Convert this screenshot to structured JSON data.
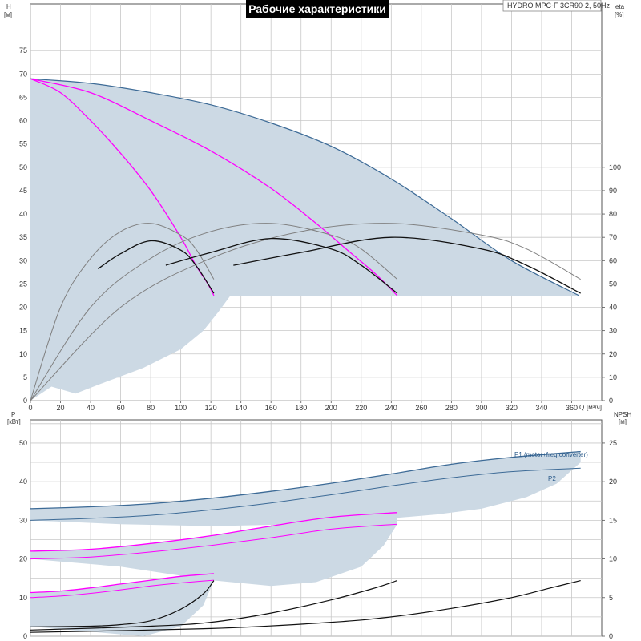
{
  "title": "Рабочие характеристики",
  "model": "HYDRO MPC-F 3CR90-2, 50Hz",
  "colors": {
    "area": "#ccd9e4",
    "max_curve": "#3c6a96",
    "reduced_curve": "#ff00ff",
    "eta_curve": "#808080",
    "npsh_curve": "#111111",
    "grid": "#c8c8c8",
    "title_bg": "#000000"
  },
  "chart_data": [
    {
      "id": "top",
      "type": "line",
      "xlabel": "Q",
      "xunit": "[м³/ч]",
      "ylabel": "H",
      "yunit": "[м]",
      "y2label": "eta",
      "y2unit": "[%]",
      "xlim": [
        0,
        380
      ],
      "ylim": [
        0,
        85
      ],
      "y2lim": [
        0,
        170
      ],
      "xticks": [
        "0",
        "20",
        "40",
        "60",
        "80",
        "100",
        "120",
        "140",
        "160",
        "180",
        "200",
        "220",
        "240",
        "260",
        "280",
        "300",
        "320",
        "340",
        "360"
      ],
      "yticks": [
        "0",
        "5",
        "10",
        "15",
        "20",
        "25",
        "30",
        "35",
        "40",
        "45",
        "50",
        "55",
        "60",
        "65",
        "70",
        "75"
      ],
      "y2ticks": [
        "0",
        "10",
        "20",
        "30",
        "40",
        "50",
        "60",
        "70",
        "80",
        "90",
        "100"
      ],
      "area": {
        "upper": [
          [
            0,
            69
          ],
          [
            40,
            68
          ],
          [
            80,
            66
          ],
          [
            120,
            63.4
          ],
          [
            160,
            59.5
          ],
          [
            200,
            54.5
          ],
          [
            240,
            47.5
          ],
          [
            280,
            39
          ],
          [
            320,
            30
          ],
          [
            365,
            22.5
          ]
        ],
        "floor": 22.5,
        "lower": [
          [
            0,
            0
          ],
          [
            14,
            3
          ],
          [
            30,
            1.5
          ],
          [
            50,
            4
          ],
          [
            75,
            7
          ],
          [
            100,
            11
          ],
          [
            115,
            15
          ],
          [
            125,
            19
          ],
          [
            133,
            22.5
          ]
        ]
      },
      "series": [
        {
          "role": "head_max",
          "points": [
            [
              0,
              69
            ],
            [
              40,
              68
            ],
            [
              80,
              66
            ],
            [
              120,
              63.4
            ],
            [
              160,
              59.5
            ],
            [
              200,
              54.5
            ],
            [
              240,
              47.5
            ],
            [
              280,
              39
            ],
            [
              320,
              30
            ],
            [
              365,
              22.5
            ]
          ]
        },
        {
          "role": "head_two_pumps",
          "points": [
            [
              0,
              69
            ],
            [
              40,
              66
            ],
            [
              80,
              60
            ],
            [
              120,
              53.5
            ],
            [
              160,
              45.5
            ],
            [
              190,
              38
            ],
            [
              210,
              32.5
            ],
            [
              230,
              27
            ],
            [
              244,
              22.5
            ]
          ]
        },
        {
          "role": "head_one_pump",
          "points": [
            [
              0,
              69
            ],
            [
              20,
              66
            ],
            [
              40,
              60
            ],
            [
              60,
              53
            ],
            [
              80,
              45
            ],
            [
              100,
              35
            ],
            [
              110,
              29
            ],
            [
              118,
              25
            ],
            [
              122,
              22.5
            ]
          ]
        },
        {
          "role": "eta_one_pump",
          "points": [
            [
              0,
              0
            ],
            [
              20,
              40
            ],
            [
              40,
              61
            ],
            [
              60,
              72.5
            ],
            [
              80,
              76
            ],
            [
              100,
              71
            ],
            [
              110,
              65
            ],
            [
              122,
              52
            ]
          ]
        },
        {
          "role": "eta_two_pumps",
          "points": [
            [
              0,
              0
            ],
            [
              40,
              40
            ],
            [
              80,
              61
            ],
            [
              120,
              72.5
            ],
            [
              160,
              76
            ],
            [
              200,
              71
            ],
            [
              220,
              65
            ],
            [
              244,
              52
            ]
          ]
        },
        {
          "role": "eta_three_pumps",
          "points": [
            [
              0,
              0
            ],
            [
              60,
              40
            ],
            [
              120,
              61
            ],
            [
              180,
              72.5
            ],
            [
              240,
              76
            ],
            [
              300,
              71
            ],
            [
              330,
              65
            ],
            [
              366,
              52
            ]
          ]
        },
        {
          "role": "eta_one_pump_lower",
          "points": [
            [
              45,
              56.5
            ],
            [
              60,
              63
            ],
            [
              80,
              68.5
            ],
            [
              100,
              64.5
            ],
            [
              110,
              58
            ],
            [
              122,
              46
            ]
          ]
        },
        {
          "role": "eta_two_pumps_lower",
          "points": [
            [
              90,
              58
            ],
            [
              120,
              63.5
            ],
            [
              160,
              69.5
            ],
            [
              200,
              65
            ],
            [
              220,
              58
            ],
            [
              244,
              46
            ]
          ]
        },
        {
          "role": "eta_three_pumps_lower",
          "points": [
            [
              135,
              58
            ],
            [
              180,
              63.5
            ],
            [
              240,
              70
            ],
            [
              300,
              65
            ],
            [
              330,
              58
            ],
            [
              366,
              46
            ]
          ]
        }
      ]
    },
    {
      "id": "bottom",
      "type": "line",
      "xlim": [
        0,
        380
      ],
      "ylabel": "P",
      "yunit": "[кВт]",
      "y2label": "NPSH",
      "y2unit": "[м]",
      "ylim": [
        0,
        56
      ],
      "y2lim": [
        0,
        28
      ],
      "yticks": [
        "0",
        "10",
        "20",
        "30",
        "40",
        "50"
      ],
      "y2ticks": [
        "0",
        "5",
        "10",
        "15",
        "20",
        "25"
      ],
      "legend": {
        "p1": "P1 (motor+freq.converter)",
        "p2": "P2"
      },
      "areas": [
        {
          "upper": [
            [
              0,
              33
            ],
            [
              40,
              33.5
            ],
            [
              80,
              34.3
            ],
            [
              120,
              35.7
            ],
            [
              160,
              37.5
            ],
            [
              200,
              39.6
            ],
            [
              240,
              42
            ],
            [
              280,
              44.5
            ],
            [
              320,
              46.3
            ],
            [
              366,
              47.8
            ]
          ],
          "lower": [
            [
              0,
              30
            ],
            [
              60,
              29
            ],
            [
              120,
              28.5
            ],
            [
              180,
              29
            ],
            [
              240,
              30.5
            ],
            [
              270,
              31.5
            ],
            [
              300,
              33
            ],
            [
              330,
              36
            ],
            [
              350,
              39.5
            ],
            [
              366,
              45
            ]
          ]
        },
        {
          "upper": [
            [
              0,
              22
            ],
            [
              40,
              22.5
            ],
            [
              80,
              24
            ],
            [
              120,
              26
            ],
            [
              160,
              28.5
            ],
            [
              200,
              30.8
            ],
            [
              244,
              32
            ]
          ],
          "lower": [
            [
              0,
              20
            ],
            [
              60,
              18
            ],
            [
              120,
              14.5
            ],
            [
              160,
              13
            ],
            [
              190,
              14
            ],
            [
              220,
              18
            ],
            [
              235,
              23.5
            ],
            [
              244,
              29
            ]
          ]
        },
        {
          "upper": [
            [
              0,
              11.3
            ],
            [
              20,
              11.7
            ],
            [
              40,
              12.5
            ],
            [
              60,
              13.5
            ],
            [
              80,
              14.5
            ],
            [
              100,
              15.5
            ],
            [
              122,
              16.2
            ]
          ],
          "lower": [
            [
              0,
              2.5
            ],
            [
              30,
              1.5
            ],
            [
              60,
              0.5
            ],
            [
              75,
              0
            ],
            [
              100,
              2.5
            ],
            [
              115,
              8
            ],
            [
              122,
              14.5
            ]
          ]
        }
      ],
      "series": [
        {
          "role": "P1_max",
          "points": [
            [
              0,
              33
            ],
            [
              40,
              33.5
            ],
            [
              80,
              34.3
            ],
            [
              120,
              35.7
            ],
            [
              160,
              37.5
            ],
            [
              200,
              39.6
            ],
            [
              240,
              42
            ],
            [
              280,
              44.5
            ],
            [
              320,
              46.3
            ],
            [
              366,
              47.8
            ]
          ]
        },
        {
          "role": "P2_max",
          "points": [
            [
              0,
              30
            ],
            [
              40,
              30.5
            ],
            [
              80,
              31.3
            ],
            [
              120,
              32.7
            ],
            [
              160,
              34.5
            ],
            [
              200,
              36.6
            ],
            [
              240,
              38.9
            ],
            [
              280,
              41
            ],
            [
              320,
              42.6
            ],
            [
              366,
              43.5
            ]
          ]
        },
        {
          "role": "P1_two_pumps",
          "points": [
            [
              0,
              22
            ],
            [
              40,
              22.5
            ],
            [
              80,
              24
            ],
            [
              120,
              26
            ],
            [
              160,
              28.5
            ],
            [
              200,
              30.8
            ],
            [
              244,
              32
            ]
          ]
        },
        {
          "role": "P2_two_pumps",
          "points": [
            [
              0,
              20
            ],
            [
              40,
              20.5
            ],
            [
              80,
              21.8
            ],
            [
              120,
              23.5
            ],
            [
              160,
              25.5
            ],
            [
              200,
              27.7
            ],
            [
              244,
              29
            ]
          ]
        },
        {
          "role": "P1_one_pump",
          "points": [
            [
              0,
              11.3
            ],
            [
              20,
              11.7
            ],
            [
              40,
              12.5
            ],
            [
              60,
              13.5
            ],
            [
              80,
              14.5
            ],
            [
              100,
              15.5
            ],
            [
              122,
              16.2
            ]
          ]
        },
        {
          "role": "P2_one_pump",
          "points": [
            [
              0,
              10
            ],
            [
              20,
              10.4
            ],
            [
              40,
              11.1
            ],
            [
              60,
              12
            ],
            [
              80,
              13
            ],
            [
              100,
              13.8
            ],
            [
              122,
              14.5
            ]
          ]
        },
        {
          "role": "NPSH_one_pump",
          "axis": "y2",
          "points": [
            [
              0,
              1.2
            ],
            [
              40,
              1.3
            ],
            [
              60,
              1.5
            ],
            [
              80,
              2
            ],
            [
              100,
              3.5
            ],
            [
              115,
              5.5
            ],
            [
              122,
              7.2
            ]
          ]
        },
        {
          "role": "NPSH_two_pumps",
          "axis": "y2",
          "points": [
            [
              0,
              0.8
            ],
            [
              80,
              1.3
            ],
            [
              120,
              1.8
            ],
            [
              160,
              3
            ],
            [
              200,
              4.7
            ],
            [
              230,
              6.3
            ],
            [
              244,
              7.2
            ]
          ]
        },
        {
          "role": "NPSH_three_pumps",
          "axis": "y2",
          "points": [
            [
              0,
              0.5
            ],
            [
              120,
              1
            ],
            [
              200,
              1.8
            ],
            [
              240,
              2.5
            ],
            [
              280,
              3.6
            ],
            [
              320,
              5
            ],
            [
              345,
              6.2
            ],
            [
              366,
              7.2
            ]
          ]
        }
      ]
    }
  ]
}
